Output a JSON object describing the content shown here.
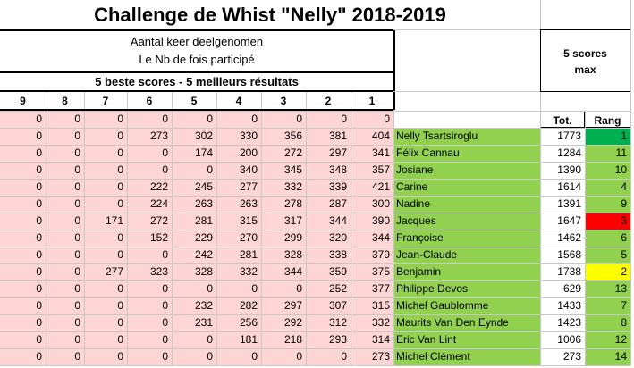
{
  "title": "Challenge de Whist \"Nelly\" 2018-2019",
  "subtitle_nl": "Aantal keer deelgenomen",
  "subtitle_fr": "Le Nb de fois participé",
  "five_best": "5 beste scores - 5 meilleurs résultats",
  "five_max": "5 scores\nmax",
  "five_max_line1": "5 scores",
  "five_max_line2": "max",
  "col_labels": [
    "9",
    "8",
    "7",
    "6",
    "5",
    "4",
    "3",
    "2",
    "1"
  ],
  "tot_label": "Tot.",
  "rang_label": "Rang",
  "zero_row": [
    "0",
    "0",
    "0",
    "0",
    "0",
    "0",
    "0",
    "0",
    "0"
  ],
  "rows": [
    {
      "vals": [
        "0",
        "0",
        "0",
        "273",
        "302",
        "330",
        "356",
        "381",
        "404"
      ],
      "name": "Nelly Tsartsiroglu",
      "tot": "1773",
      "rang": "1",
      "rang_color": "#00b050"
    },
    {
      "vals": [
        "0",
        "0",
        "0",
        "0",
        "174",
        "200",
        "272",
        "297",
        "341"
      ],
      "name": "Félix Cannau",
      "tot": "1284",
      "rang": "11",
      "rang_color": "#92d050"
    },
    {
      "vals": [
        "0",
        "0",
        "0",
        "0",
        "0",
        "340",
        "345",
        "348",
        "357"
      ],
      "name": "Josiane",
      "tot": "1390",
      "rang": "10",
      "rang_color": "#92d050"
    },
    {
      "vals": [
        "0",
        "0",
        "0",
        "222",
        "245",
        "277",
        "332",
        "339",
        "421"
      ],
      "name": "Carine",
      "tot": "1614",
      "rang": "4",
      "rang_color": "#92d050"
    },
    {
      "vals": [
        "0",
        "0",
        "0",
        "224",
        "263",
        "263",
        "278",
        "287",
        "300"
      ],
      "name": "Nadine",
      "tot": "1391",
      "rang": "9",
      "rang_color": "#92d050"
    },
    {
      "vals": [
        "0",
        "0",
        "171",
        "272",
        "281",
        "315",
        "317",
        "344",
        "390"
      ],
      "name": "Jacques",
      "tot": "1647",
      "rang": "3",
      "rang_color": "#ff0000"
    },
    {
      "vals": [
        "0",
        "0",
        "0",
        "152",
        "229",
        "270",
        "299",
        "320",
        "344"
      ],
      "name": "Françoise",
      "tot": "1462",
      "rang": "6",
      "rang_color": "#92d050"
    },
    {
      "vals": [
        "0",
        "0",
        "0",
        "0",
        "242",
        "281",
        "328",
        "338",
        "379"
      ],
      "name": "Jean-Claude",
      "tot": "1568",
      "rang": "5",
      "rang_color": "#92d050"
    },
    {
      "vals": [
        "0",
        "0",
        "277",
        "323",
        "328",
        "332",
        "344",
        "359",
        "375"
      ],
      "name": "Benjamin",
      "tot": "1738",
      "rang": "2",
      "rang_color": "#ffff00"
    },
    {
      "vals": [
        "0",
        "0",
        "0",
        "0",
        "0",
        "0",
        "0",
        "252",
        "377"
      ],
      "name": "Philippe Devos",
      "tot": "629",
      "rang": "13",
      "rang_color": "#92d050"
    },
    {
      "vals": [
        "0",
        "0",
        "0",
        "0",
        "232",
        "282",
        "297",
        "307",
        "315"
      ],
      "name": "Michel Gaublomme",
      "tot": "1433",
      "rang": "7",
      "rang_color": "#92d050"
    },
    {
      "vals": [
        "0",
        "0",
        "0",
        "0",
        "231",
        "256",
        "292",
        "312",
        "332"
      ],
      "name": "Maurits Van Den Eynde",
      "tot": "1423",
      "rang": "8",
      "rang_color": "#92d050"
    },
    {
      "vals": [
        "0",
        "0",
        "0",
        "0",
        "0",
        "181",
        "218",
        "293",
        "314"
      ],
      "name": "Eric Van Lint",
      "tot": "1006",
      "rang": "12",
      "rang_color": "#92d050"
    },
    {
      "vals": [
        "0",
        "0",
        "0",
        "0",
        "0",
        "0",
        "0",
        "0",
        "273"
      ],
      "name": "Michel Clément",
      "tot": "273",
      "rang": "14",
      "rang_color": "#92d050"
    }
  ],
  "colors": {
    "pink": "#fcd5d4",
    "green": "#92d050",
    "grid": "#d0d0d0"
  }
}
